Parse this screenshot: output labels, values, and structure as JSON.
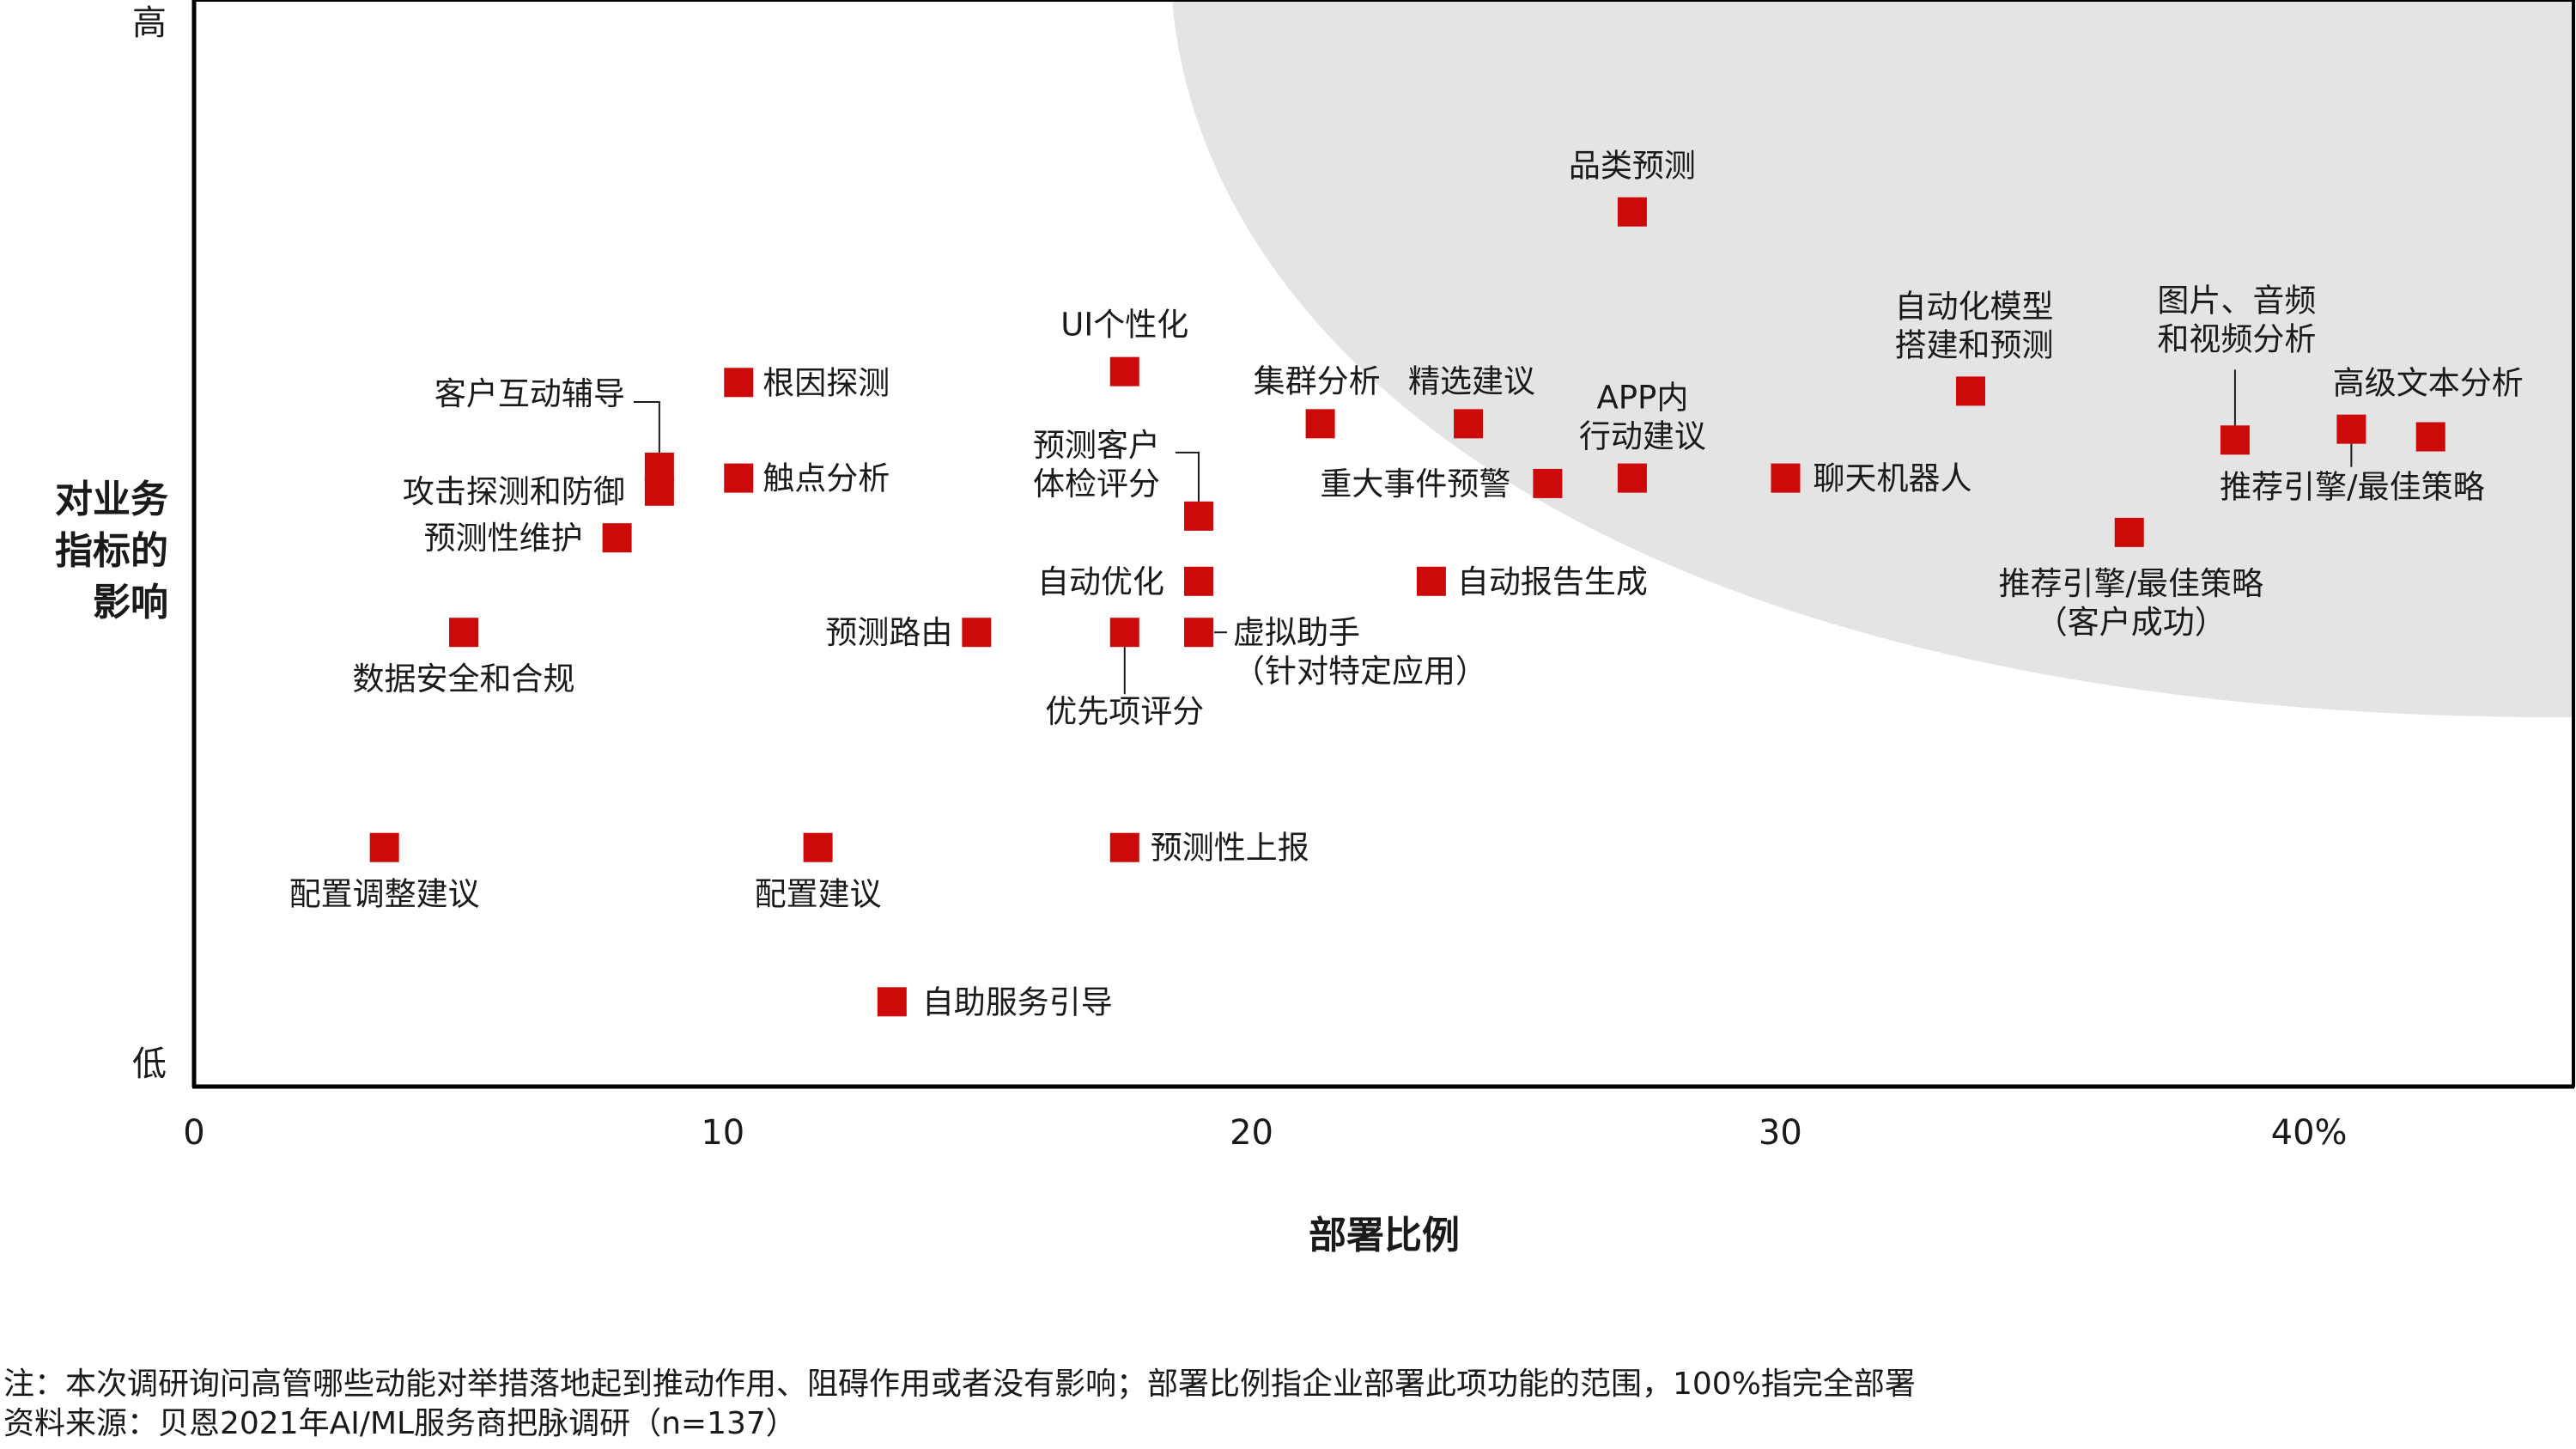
{
  "chart_data": {
    "type": "scatter",
    "xlabel": "部署比例",
    "ylabel": [
      "对业务",
      "指标的",
      "影响"
    ],
    "xlim": [
      0,
      45
    ],
    "ylim": [
      0,
      100
    ],
    "x_ticks": [
      {
        "value": 0,
        "label": "0"
      },
      {
        "value": 10,
        "label": "10"
      },
      {
        "value": 20,
        "label": "20"
      },
      {
        "value": 30,
        "label": "30"
      },
      {
        "value": 40,
        "label": "40%"
      }
    ],
    "y_ticks": {
      "high": "高",
      "low": "低"
    },
    "highlight_region": "top-right",
    "marker_color": "#cc0a0a",
    "region_color": "#e4e4e4",
    "points": [
      {
        "label": [
          "品类预测"
        ],
        "x": 27.2,
        "y": 80.5
      },
      {
        "label": [
          "UI个性化"
        ],
        "x": 17.6,
        "y": 65.8
      },
      {
        "label": [
          "根因探测"
        ],
        "x": 10.3,
        "y": 64.8
      },
      {
        "label": [
          "集群分析"
        ],
        "x": 21.3,
        "y": 61.0
      },
      {
        "label": [
          "精选建议"
        ],
        "x": 24.1,
        "y": 61.0
      },
      {
        "label": [
          "APP内",
          "行动建议"
        ],
        "x": 27.2,
        "y": 56.0
      },
      {
        "label": [
          "自动化模型",
          "搭建和预测"
        ],
        "x": 33.6,
        "y": 64.0
      },
      {
        "label": [
          "图片、音频",
          "和视频分析"
        ],
        "x": 38.6,
        "y": 59.5
      },
      {
        "label": [
          "推荐引擎/最佳策略"
        ],
        "x": 40.8,
        "y": 60.5
      },
      {
        "label": [
          "高级文本分析"
        ],
        "x": 42.3,
        "y": 59.8
      },
      {
        "label": [
          "聊天机器人"
        ],
        "x": 30.1,
        "y": 56.0
      },
      {
        "label": [
          "重大事件预警"
        ],
        "x": 25.6,
        "y": 55.5
      },
      {
        "label": [
          "推荐引擎/最佳策略",
          "（客户成功）"
        ],
        "x": 36.6,
        "y": 51.0
      },
      {
        "label": [
          "客户互动辅导"
        ],
        "x": 8.8,
        "y": 57.0
      },
      {
        "label": [
          "攻击探测和防御"
        ],
        "x": 8.8,
        "y": 54.8
      },
      {
        "label": [
          "预测性维护"
        ],
        "x": 8.0,
        "y": 50.5
      },
      {
        "label": [
          "触点分析"
        ],
        "x": 10.3,
        "y": 56.0
      },
      {
        "label": [
          "预测客户",
          "体检评分"
        ],
        "x": 19.0,
        "y": 52.5
      },
      {
        "label": [
          "自动优化"
        ],
        "x": 19.0,
        "y": 46.5
      },
      {
        "label": [
          "自动报告生成"
        ],
        "x": 23.4,
        "y": 46.5
      },
      {
        "label": [
          "数据安全和合规"
        ],
        "x": 5.1,
        "y": 41.8
      },
      {
        "label": [
          "预测路由"
        ],
        "x": 14.8,
        "y": 41.8
      },
      {
        "label": [
          "优先项评分"
        ],
        "x": 17.6,
        "y": 41.8
      },
      {
        "label": [
          "虚拟助手",
          "（针对特定应用）"
        ],
        "x": 19.0,
        "y": 41.8
      },
      {
        "label": [
          "配置调整建议"
        ],
        "x": 3.6,
        "y": 22.0
      },
      {
        "label": [
          "配置建议"
        ],
        "x": 11.8,
        "y": 22.0
      },
      {
        "label": [
          "预测性上报"
        ],
        "x": 17.6,
        "y": 22.0
      },
      {
        "label": [
          "自助服务引导"
        ],
        "x": 13.2,
        "y": 7.8
      }
    ]
  },
  "footnotes": {
    "note": "注：本次调研询问高管哪些动能对举措落地起到推动作用、阻碍作用或者没有影响；部署比例指企业部署此项功能的范围，100%指完全部署",
    "source": "资料来源：贝恩2021年AI/ML服务商把脉调研（n=137）"
  }
}
